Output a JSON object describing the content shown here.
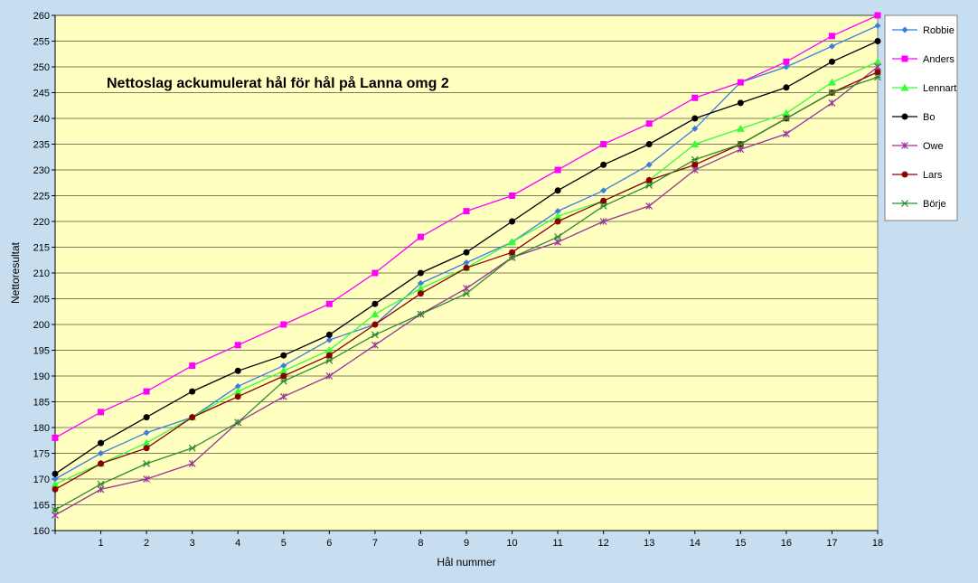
{
  "chart_data": {
    "type": "line",
    "title": "Nettoslag ackumulerat hål för hål på Lanna omg 2",
    "xlabel": "Hål nummer",
    "ylabel": "Nettoresultat",
    "x": [
      0,
      1,
      2,
      3,
      4,
      5,
      6,
      7,
      8,
      9,
      10,
      11,
      12,
      13,
      14,
      15,
      16,
      17,
      18
    ],
    "xticks": [
      "1",
      "2",
      "3",
      "4",
      "5",
      "6",
      "7",
      "8",
      "9",
      "10",
      "11",
      "12",
      "13",
      "14",
      "15",
      "16",
      "17",
      "18"
    ],
    "ylim": [
      160,
      260
    ],
    "ystep": 5,
    "grid": true,
    "legend_position": "right",
    "plot_background": "#ffffc0",
    "series": [
      {
        "name": "Robbie",
        "color": "#3b7ddd",
        "marker": "diamond",
        "values": [
          170,
          175,
          179,
          182,
          188,
          192,
          197,
          200,
          208,
          212,
          216,
          222,
          226,
          231,
          238,
          247,
          250,
          254,
          258
        ]
      },
      {
        "name": "Anders",
        "color": "#ff00ff",
        "marker": "square",
        "values": [
          178,
          183,
          187,
          192,
          196,
          200,
          204,
          210,
          217,
          222,
          225,
          230,
          235,
          239,
          244,
          247,
          251,
          256,
          260
        ]
      },
      {
        "name": "Lennart",
        "color": "#33ff33",
        "marker": "triangle",
        "values": [
          169,
          173,
          177,
          182,
          187,
          191,
          195,
          202,
          207,
          211,
          216,
          221,
          224,
          228,
          235,
          238,
          241,
          247,
          251
        ]
      },
      {
        "name": "Bo",
        "color": "#000000",
        "marker": "circle",
        "values": [
          171,
          177,
          182,
          187,
          191,
          194,
          198,
          204,
          210,
          214,
          220,
          226,
          231,
          235,
          240,
          243,
          246,
          251,
          255
        ]
      },
      {
        "name": "Owe",
        "color": "#993399",
        "marker": "star",
        "values": [
          163,
          168,
          170,
          173,
          181,
          186,
          190,
          196,
          202,
          207,
          213,
          216,
          220,
          223,
          230,
          234,
          237,
          243,
          250
        ]
      },
      {
        "name": "Lars",
        "color": "#8b0000",
        "marker": "circle",
        "values": [
          168,
          173,
          176,
          182,
          186,
          190,
          194,
          200,
          206,
          211,
          214,
          220,
          224,
          228,
          231,
          235,
          240,
          245,
          249
        ]
      },
      {
        "name": "Börje",
        "color": "#2e8b2e",
        "marker": "asterisk",
        "values": [
          164,
          169,
          173,
          176,
          181,
          189,
          193,
          198,
          202,
          206,
          213,
          217,
          223,
          227,
          232,
          235,
          240,
          245,
          248
        ]
      }
    ]
  }
}
